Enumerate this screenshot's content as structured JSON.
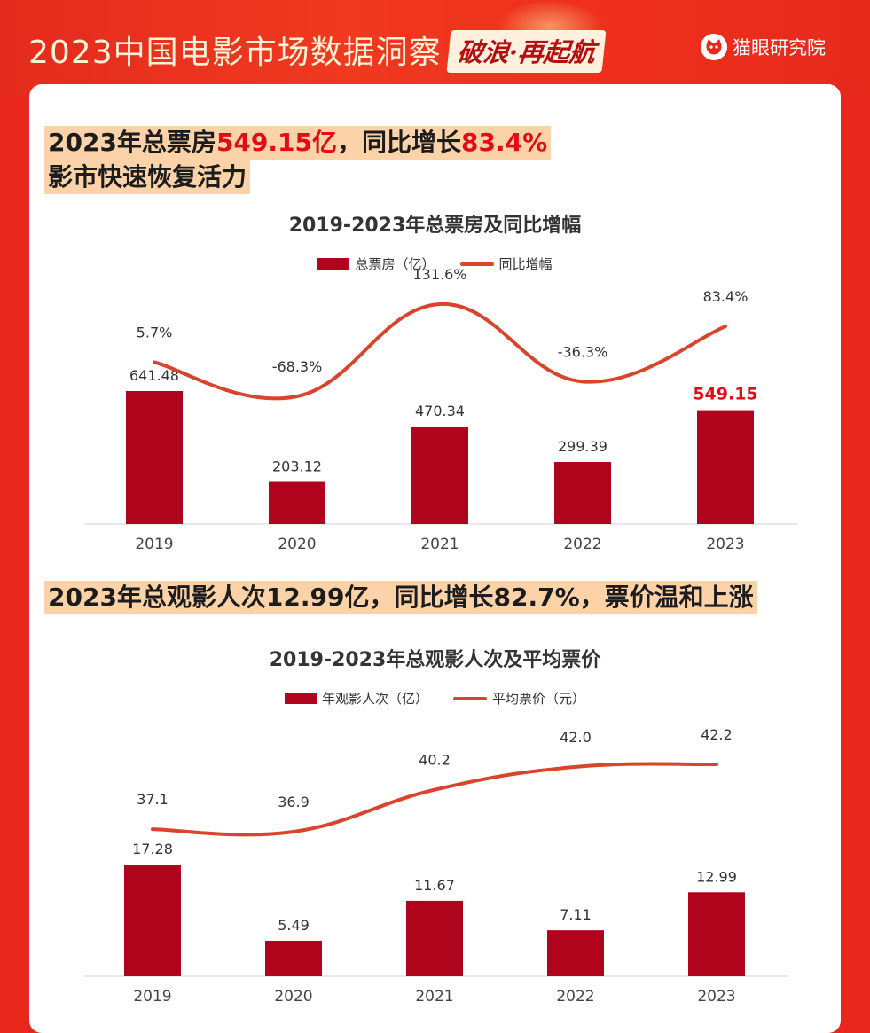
{
  "header": {
    "title": "2023中国电影市场数据洞察",
    "slogan": "破浪·再起航",
    "brand": "猫眼研究院"
  },
  "section1": {
    "headline_line1": {
      "prefix": "2023年总票房",
      "value": "549.15亿",
      "middle": "，同比增长",
      "growth": "83.4%"
    },
    "headline_line2": "影市快速恢复活力"
  },
  "section2": {
    "headline": "2023年总观影人次12.99亿，同比增长82.7%，票价温和上涨"
  },
  "colors": {
    "bar": "#b0041d",
    "line": "#d9452c",
    "highlight": "#e10d14",
    "headline_bg": "#fcd3a8",
    "background": "#e8281c"
  },
  "chart_data": [
    {
      "type": "bar",
      "title": "2019-2023年总票房及同比增幅",
      "categories": [
        "2019",
        "2020",
        "2021",
        "2022",
        "2023"
      ],
      "series": [
        {
          "name": "总票房（亿）",
          "type": "bar",
          "values": [
            641.48,
            203.12,
            470.34,
            299.39,
            549.15
          ],
          "labels": [
            "641.48",
            "203.12",
            "470.34",
            "299.39",
            "549.15"
          ]
        },
        {
          "name": "同比增幅",
          "type": "line",
          "values": [
            5.7,
            -68.3,
            131.6,
            -36.3,
            83.4
          ],
          "labels": [
            "5.7%",
            "-68.3%",
            "131.6%",
            "-36.3%",
            "83.4%"
          ]
        }
      ],
      "highlight_index": 4,
      "legend": "top-center",
      "grid": false
    },
    {
      "type": "bar",
      "title": "2019-2023年总观影人次及平均票价",
      "categories": [
        "2019",
        "2020",
        "2021",
        "2022",
        "2023"
      ],
      "series": [
        {
          "name": "年观影人次（亿）",
          "type": "bar",
          "values": [
            17.28,
            5.49,
            11.67,
            7.11,
            12.99
          ],
          "labels": [
            "17.28",
            "5.49",
            "11.67",
            "7.11",
            "12.99"
          ]
        },
        {
          "name": "平均票价（元）",
          "type": "line",
          "values": [
            37.1,
            36.9,
            40.2,
            42.0,
            42.2
          ],
          "labels": [
            "37.1",
            "36.9",
            "40.2",
            "42.0",
            "42.2"
          ]
        }
      ],
      "legend": "top-center",
      "grid": false
    }
  ]
}
